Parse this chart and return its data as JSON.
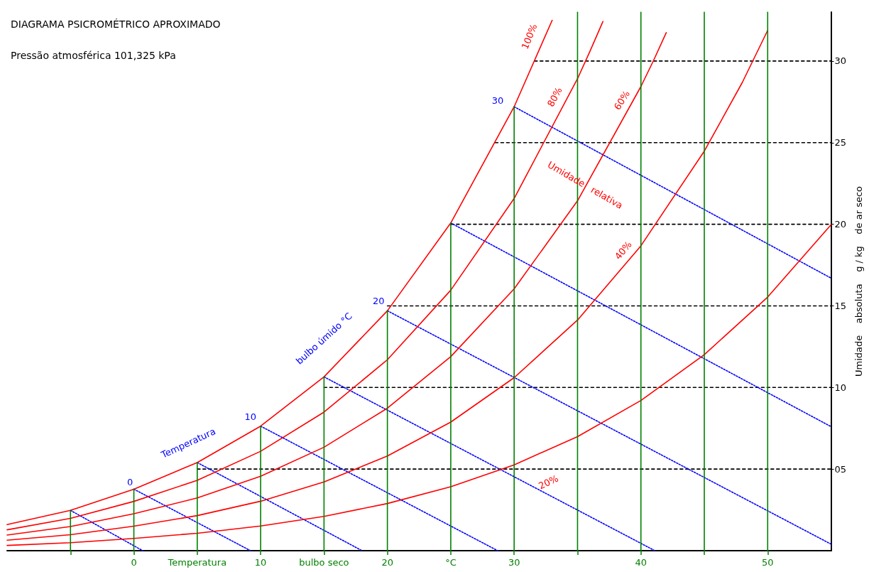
{
  "chart_data": {
    "type": "line",
    "title": "DIAGRAMA PSICROMÉTRICO APROXIMADO",
    "subtitle": "Pressão atmosférica 101,325 kPa",
    "ylabel": "Umidade    absoluta    g / kg    de ar seco",
    "xlim": [
      -10,
      55
    ],
    "ylim": [
      0,
      33
    ],
    "xticks": [
      {
        "value": -5,
        "label": null
      },
      0,
      {
        "value": 5,
        "label": "Temperatura"
      },
      10,
      {
        "value": 15,
        "label": "bulbo seco"
      },
      20,
      {
        "value": 25,
        "label": "°C"
      },
      30,
      {
        "value": 35,
        "label": null
      },
      40,
      {
        "value": 45,
        "label": null
      },
      50
    ],
    "yticks": [
      {
        "value": 5,
        "label": "05"
      },
      10,
      15,
      20,
      25,
      30
    ],
    "grid": false,
    "marker": "none",
    "series": [
      {
        "color": "#ff0000",
        "line_style": "solid",
        "x": [
          -10,
          -5,
          0,
          5,
          10,
          15,
          20,
          25,
          30,
          33
        ],
        "values": [
          1.6,
          2.47,
          3.77,
          5.4,
          7.63,
          10.65,
          14.7,
          20.08,
          27.2,
          32.5
        ]
      },
      {
        "color": "#ff0000",
        "line_style": "solid",
        "x": [
          -10,
          -5,
          0,
          5,
          10,
          15,
          20,
          25,
          30,
          35,
          36,
          37
        ],
        "values": [
          1.28,
          1.98,
          3.02,
          4.31,
          6.09,
          8.49,
          11.7,
          15.96,
          21.58,
          28.92,
          30.63,
          32.42
        ]
      },
      {
        "color": "#ff0000",
        "line_style": "solid",
        "x": [
          -10,
          -5,
          0,
          5,
          10,
          15,
          20,
          25,
          30,
          35,
          40,
          41,
          42
        ],
        "values": [
          0.96,
          1.48,
          2.26,
          3.23,
          4.56,
          6.34,
          8.73,
          11.89,
          16.04,
          21.44,
          28.44,
          30.04,
          31.74
        ]
      },
      {
        "color": "#ff0000",
        "line_style": "solid",
        "x": [
          -10,
          -5,
          0,
          5,
          10,
          15,
          20,
          25,
          30,
          35,
          40,
          45,
          48,
          50
        ],
        "values": [
          0.64,
          0.98,
          1.5,
          2.15,
          3.03,
          4.21,
          5.8,
          7.88,
          10.6,
          14.13,
          18.68,
          24.48,
          28.69,
          31.88
        ]
      },
      {
        "color": "#ff0000",
        "line_style": "solid",
        "x": [
          -10,
          -5,
          0,
          5,
          10,
          15,
          20,
          25,
          30,
          35,
          40,
          45,
          50,
          55
        ],
        "values": [
          0.32,
          0.49,
          0.75,
          1.07,
          1.51,
          2.1,
          2.89,
          3.92,
          5.26,
          6.99,
          9.2,
          12.01,
          15.54,
          19.97
        ]
      },
      {
        "color": "#008000",
        "line_style": "solid",
        "x": [
          -5,
          -5
        ],
        "values": [
          0,
          2.47
        ]
      },
      {
        "color": "#008000",
        "line_style": "solid",
        "x": [
          0,
          0
        ],
        "values": [
          0,
          3.77
        ]
      },
      {
        "color": "#008000",
        "line_style": "solid",
        "x": [
          5,
          5
        ],
        "values": [
          0,
          5.4
        ]
      },
      {
        "color": "#008000",
        "line_style": "solid",
        "x": [
          10,
          10
        ],
        "values": [
          0,
          7.63
        ]
      },
      {
        "color": "#008000",
        "line_style": "solid",
        "x": [
          15,
          15
        ],
        "values": [
          0,
          10.65
        ]
      },
      {
        "color": "#008000",
        "line_style": "solid",
        "x": [
          20,
          20
        ],
        "values": [
          0,
          14.7
        ]
      },
      {
        "color": "#008000",
        "line_style": "solid",
        "x": [
          25,
          25
        ],
        "values": [
          0,
          20.08
        ]
      },
      {
        "color": "#008000",
        "line_style": "solid",
        "x": [
          30,
          30
        ],
        "values": [
          0,
          27.2
        ]
      },
      {
        "color": "#008000",
        "line_style": "solid",
        "x": [
          35,
          35
        ],
        "values": [
          0,
          33
        ]
      },
      {
        "color": "#008000",
        "line_style": "solid",
        "x": [
          40,
          40
        ],
        "values": [
          0,
          33
        ]
      },
      {
        "color": "#008000",
        "line_style": "solid",
        "x": [
          45,
          45
        ],
        "values": [
          0,
          33
        ]
      },
      {
        "color": "#008000",
        "line_style": "solid",
        "x": [
          50,
          50
        ],
        "values": [
          0,
          33
        ]
      },
      {
        "color": "#000000",
        "line_style": "dashed",
        "x": [
          5,
          55
        ],
        "values": [
          5,
          5
        ]
      },
      {
        "color": "#000000",
        "line_style": "dashed",
        "x": [
          15,
          55
        ],
        "values": [
          10,
          10
        ]
      },
      {
        "color": "#000000",
        "line_style": "dashed",
        "x": [
          20,
          55
        ],
        "values": [
          15,
          15
        ]
      },
      {
        "color": "#000000",
        "line_style": "dashed",
        "x": [
          25,
          55
        ],
        "values": [
          20,
          20
        ]
      },
      {
        "color": "#000000",
        "line_style": "dashed",
        "x": [
          28.5,
          55
        ],
        "values": [
          25,
          25
        ]
      },
      {
        "color": "#000000",
        "line_style": "dashed",
        "x": [
          31.6,
          55
        ],
        "values": [
          30,
          30
        ]
      },
      {
        "color": "#0000ff",
        "line_style": "dotted",
        "x": [
          -5,
          0.7
        ],
        "values": [
          2.47,
          0
        ]
      },
      {
        "color": "#0000ff",
        "line_style": "dotted",
        "x": [
          0,
          9.2
        ],
        "values": [
          3.77,
          0
        ]
      },
      {
        "color": "#0000ff",
        "line_style": "dotted",
        "x": [
          5,
          18
        ],
        "values": [
          5.4,
          0
        ]
      },
      {
        "color": "#0000ff",
        "line_style": "dotted",
        "x": [
          10,
          28.7
        ],
        "values": [
          7.63,
          0
        ]
      },
      {
        "color": "#0000ff",
        "line_style": "dotted",
        "x": [
          15,
          41.1
        ],
        "values": [
          10.65,
          0
        ]
      },
      {
        "color": "#0000ff",
        "line_style": "dotted",
        "x": [
          20,
          55
        ],
        "values": [
          14.7,
          0.4
        ]
      },
      {
        "color": "#0000ff",
        "line_style": "dotted",
        "x": [
          25,
          55
        ],
        "values": [
          20.08,
          7.6
        ]
      },
      {
        "color": "#0000ff",
        "line_style": "dotted",
        "x": [
          30,
          55
        ],
        "values": [
          27.2,
          16.7
        ]
      }
    ],
    "annotations": [
      "100%",
      "80%",
      "60%",
      "40%",
      "20%",
      "Umidade   relativa",
      "0",
      "10",
      "20",
      "30",
      "Temperatura",
      "bulbo úmido °C"
    ]
  }
}
